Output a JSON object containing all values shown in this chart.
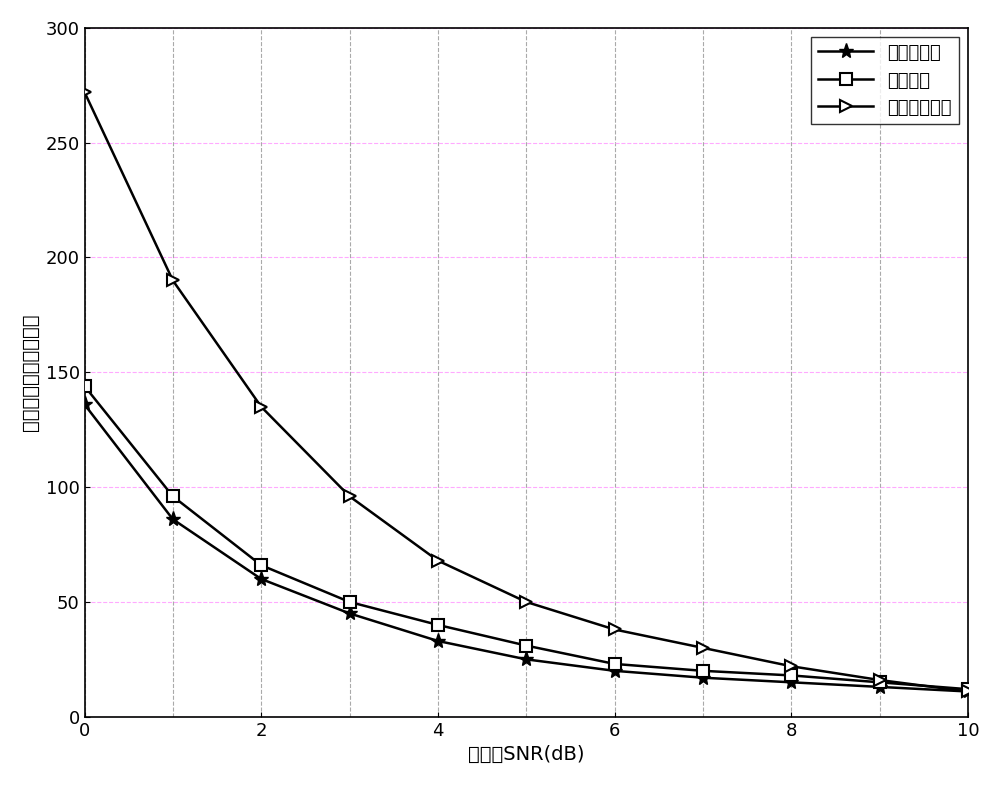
{
  "x": [
    0,
    1,
    2,
    3,
    4,
    5,
    6,
    7,
    8,
    9,
    10
  ],
  "series1_y": [
    136,
    86,
    60,
    45,
    33,
    25,
    20,
    17,
    15,
    13,
    11
  ],
  "series2_y": [
    144,
    96,
    66,
    50,
    40,
    31,
    23,
    20,
    18,
    15,
    12
  ],
  "series3_y": [
    272,
    190,
    135,
    96,
    68,
    50,
    38,
    30,
    22,
    16,
    11
  ],
  "series1_label": "本发明方法",
  "series2_label": "原始方法",
  "series3_label": "能量检测算法",
  "xlabel": "信噪比SNR(dB)",
  "ylabel": "检测延时（采样点数）",
  "xlim": [
    0,
    10
  ],
  "ylim": [
    0,
    300
  ],
  "xticks": [
    0,
    2,
    4,
    6,
    8,
    10
  ],
  "yticks": [
    0,
    50,
    100,
    150,
    200,
    250,
    300
  ],
  "line_color": "#000000",
  "vgrid_color": "#aaaaaa",
  "hgrid_color": "#ffaaff",
  "background_color": "#ffffff",
  "label_fontsize": 14,
  "tick_fontsize": 13,
  "legend_fontsize": 13
}
